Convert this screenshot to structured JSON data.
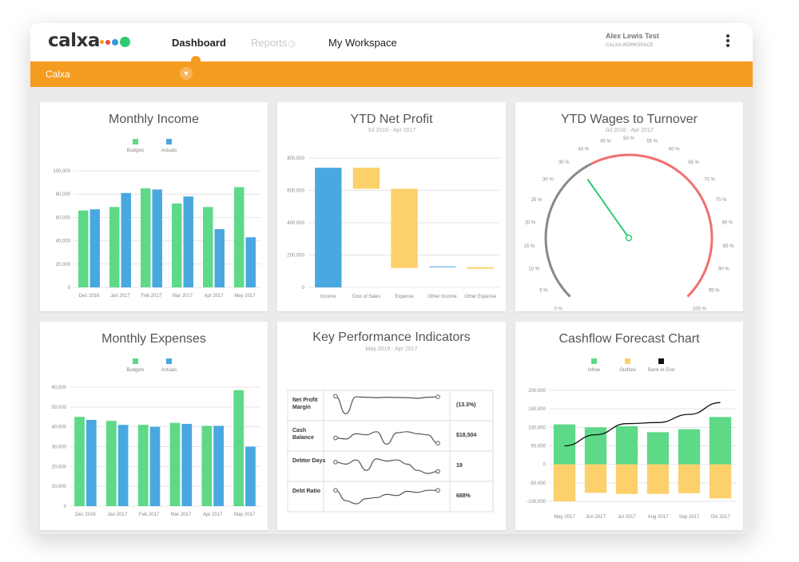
{
  "app": {
    "logo": "calxa",
    "logo_dot_colors": [
      "#f39c20",
      "#e74c3c",
      "#3498db",
      "#2ecc71"
    ],
    "nav": [
      "Dashboard",
      "Reports",
      "My Workspace"
    ],
    "user_name": "Alex Lewis Test",
    "workspace": "CALXA WORKSPACE",
    "org": "Calxa",
    "accent": "#f39c20"
  },
  "monthly_income": {
    "title": "Monthly Income",
    "legend": [
      "Budgets",
      "Actuals"
    ],
    "chart_data": {
      "type": "bar",
      "categories": [
        "Dec 2016",
        "Jan 2017",
        "Feb 2017",
        "Mar 2017",
        "Apr 2017",
        "May 2017"
      ],
      "series": [
        {
          "name": "Budgets",
          "values": [
            66000,
            69000,
            85000,
            72000,
            69000,
            86000
          ],
          "color": "#5dd988"
        },
        {
          "name": "Actuals",
          "values": [
            67000,
            81000,
            84000,
            78000,
            50000,
            43000
          ],
          "color": "#4aa8e0"
        }
      ],
      "ylim": [
        0,
        100000
      ],
      "yticks": [
        "0",
        "20,000",
        "40,000",
        "60,000",
        "80,000",
        "100,000"
      ],
      "grid": true,
      "legend_position": "top"
    }
  },
  "ytd_net_profit": {
    "title": "YTD Net Profit",
    "subtitle": "Jul 2016 - Apr 2017",
    "chart_data": {
      "type": "bar",
      "subtype": "waterfall",
      "categories": [
        "Income",
        "Cost of Sales",
        "Expense",
        "Other Income",
        "Other Expense"
      ],
      "ranges": [
        [
          0,
          740000
        ],
        [
          610000,
          740000
        ],
        [
          120000,
          610000
        ],
        [
          125000,
          130000
        ],
        [
          115000,
          125000
        ]
      ],
      "colors": [
        "#4aa8e0",
        "#fcd06a",
        "#fcd06a",
        "#4aa8e0",
        "#fcd06a"
      ],
      "ylim": [
        0,
        800000
      ],
      "yticks": [
        "0",
        "200,000",
        "400,000",
        "600,000",
        "800,000"
      ],
      "grid": true
    }
  },
  "wages_turnover": {
    "title": "YTD Wages to Turnover",
    "subtitle": "Jul 2016 - Apr 2017",
    "gauge": {
      "min": 0,
      "max": 100,
      "value": 37,
      "red_from": 40,
      "ticks": [
        "0 %",
        "5 %",
        "10 %",
        "15 %",
        "20 %",
        "25 %",
        "30 %",
        "35 %",
        "40 %",
        "45 %",
        "50 %",
        "55 %",
        "60 %",
        "65 %",
        "70 %",
        "75 %",
        "80 %",
        "85 %",
        "90 %",
        "95 %",
        "100 %"
      ],
      "colors": {
        "normal": "#888888",
        "warn": "#f07070",
        "needle": "#2ecc71"
      }
    }
  },
  "monthly_expenses": {
    "title": "Monthly Expenses",
    "legend": [
      "Budgets",
      "Actuals"
    ],
    "chart_data": {
      "type": "bar",
      "categories": [
        "Dec 2016",
        "Jan 2017",
        "Feb 2017",
        "Mar 2017",
        "Apr 2017",
        "May 2017"
      ],
      "series": [
        {
          "name": "Budgets",
          "values": [
            45000,
            43000,
            41000,
            42000,
            40500,
            58500
          ],
          "color": "#5dd988"
        },
        {
          "name": "Actuals",
          "values": [
            43500,
            41000,
            40000,
            41500,
            40500,
            30000
          ],
          "color": "#4aa8e0"
        }
      ],
      "ylim": [
        0,
        60000
      ],
      "yticks": [
        "0",
        "10,000",
        "20,000",
        "30,000",
        "40,000",
        "50,000",
        "60,000"
      ],
      "grid": true,
      "legend_position": "top"
    }
  },
  "kpi": {
    "title": "Key Performance Indicators",
    "subtitle": "May 2016 - Apr 2017",
    "rows": [
      {
        "label": "Net Profit Margin",
        "value": "(13.3%)",
        "spark": [
          95,
          10,
          92,
          90,
          88,
          90,
          89,
          88,
          85,
          90,
          92
        ]
      },
      {
        "label": "Cash Balance",
        "value": "$18,504",
        "spark": [
          40,
          35,
          60,
          55,
          70,
          10,
          65,
          70,
          60,
          55,
          15
        ]
      },
      {
        "label": "Debtor Days",
        "value": "19",
        "spark": [
          70,
          60,
          80,
          30,
          85,
          75,
          80,
          60,
          30,
          15,
          25
        ]
      },
      {
        "label": "Debt Ratio",
        "value": "688%",
        "spark": [
          80,
          30,
          15,
          40,
          45,
          60,
          55,
          75,
          70,
          80,
          80
        ]
      }
    ]
  },
  "cashflow": {
    "title": "Cashflow Forecast Chart",
    "legend": [
      "Inflow",
      "Outflow",
      "Bank At End"
    ],
    "chart_data": {
      "type": "bar",
      "categories": [
        "May 2017",
        "Jun 2017",
        "Jul 2017",
        "Aug 2017",
        "Sep 2017",
        "Oct 2017"
      ],
      "series": [
        {
          "name": "Inflow",
          "values": [
            108000,
            100000,
            103000,
            87000,
            95000,
            128000
          ],
          "color": "#5dd988"
        },
        {
          "name": "Outflow",
          "values": [
            -100000,
            -77000,
            -80000,
            -80000,
            -78000,
            -92000
          ],
          "color": "#fcd06a"
        },
        {
          "name": "Bank At End",
          "values": [
            50000,
            80000,
            110000,
            113000,
            135000,
            167000
          ],
          "color": "#111111",
          "type": "line"
        }
      ],
      "ylim": [
        -100000,
        200000
      ],
      "yticks": [
        "-100,000",
        "-50,000",
        "0",
        "50,000",
        "100,000",
        "150,000",
        "200,000"
      ],
      "grid": true,
      "legend_position": "top"
    }
  }
}
